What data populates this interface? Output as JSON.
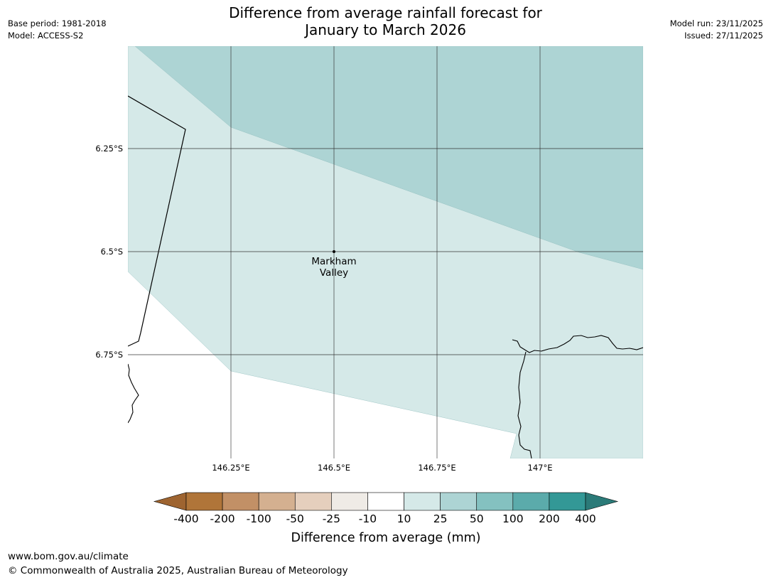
{
  "header": {
    "base_period": "Base period: 1981-2018",
    "model": "Model: ACCESS-S2",
    "title_line1": "Difference from average rainfall forecast for",
    "title_line2": "January to March 2026",
    "model_run": "Model run: 23/11/2025",
    "issued": "Issued: 27/11/2025"
  },
  "map": {
    "lat_labels": [
      "6.25°S",
      "6.5°S",
      "6.75°S"
    ],
    "lon_labels": [
      "146.25°E",
      "146.5°E",
      "146.75°E",
      "147°E"
    ],
    "place": {
      "line1": "Markham",
      "line2": "Valley"
    }
  },
  "legend": {
    "labels": [
      "-400",
      "-200",
      "-100",
      "-50",
      "-25",
      "-10",
      "10",
      "25",
      "50",
      "100",
      "200",
      "400"
    ],
    "colors": [
      "#9e6430",
      "#b07539",
      "#c29066",
      "#d4b090",
      "#e5cfbd",
      "#efebe6",
      "#ffffff",
      "#d5e9e8",
      "#add4d4",
      "#84c1c0",
      "#5babab",
      "#339896",
      "#2b7a78"
    ],
    "title": "Difference from average (mm)"
  },
  "footer": {
    "url": "www.bom.gov.au/climate",
    "copyright": "© Commonwealth of Australia 2025, Australian Bureau of Meteorology"
  }
}
